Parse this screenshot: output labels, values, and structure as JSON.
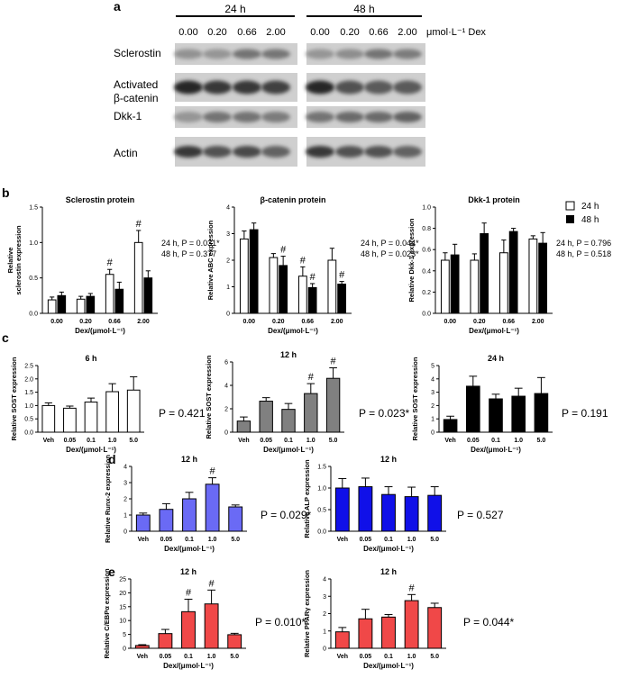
{
  "panel_labels": {
    "a": "a",
    "b": "b",
    "c": "c",
    "d": "d",
    "e": "e"
  },
  "panel_a": {
    "time_labels": [
      "24 h",
      "48 h"
    ],
    "dose_labels": [
      "0.00",
      "0.20",
      "0.66",
      "2.00",
      "0.00",
      "0.20",
      "0.66",
      "2.00"
    ],
    "unit_label": "μmol·L⁻¹ Dex",
    "row_labels": [
      [
        "Sclerostin"
      ],
      [
        "Activated",
        "β-catenin"
      ],
      [
        "Dkk-1"
      ],
      [
        "Actin"
      ]
    ]
  },
  "legend": {
    "items": [
      {
        "label": "24 h",
        "color": "#ffffff"
      },
      {
        "label": "48 h",
        "color": "#000000"
      }
    ]
  },
  "chart_data": [
    {
      "id": "b1",
      "type": "bar",
      "title": "Sclerostin protein",
      "ylabel": "Relative sclerostin expression",
      "ylabel_lines": [
        "Relative",
        "sclerostin expression"
      ],
      "xlabel": "Dex/(μmol·L⁻¹)",
      "categories": [
        "0.00",
        "0.20",
        "0.66",
        "2.00"
      ],
      "ylim": [
        0,
        1.5
      ],
      "yticks": [
        "0.0",
        "0.5",
        "1.0",
        "1.5"
      ],
      "series": [
        {
          "name": "24 h",
          "values": [
            0.19,
            0.2,
            0.55,
            1.0
          ],
          "errors": [
            0.04,
            0.04,
            0.07,
            0.17
          ],
          "color": "#ffffff"
        },
        {
          "name": "48 h",
          "values": [
            0.25,
            0.24,
            0.34,
            0.5
          ],
          "errors": [
            0.05,
            0.04,
            0.1,
            0.1
          ],
          "color": "#000000"
        }
      ],
      "marks": [
        {
          "series": 0,
          "index": 2,
          "text": "#"
        },
        {
          "series": 0,
          "index": 3,
          "text": "#"
        }
      ],
      "stats": [
        "24 h, P = 0.031*",
        "48 h, P = 0.377"
      ]
    },
    {
      "id": "b2",
      "type": "bar",
      "title": "β-catenin protein",
      "ylabel": "Relative ABC expression",
      "ylabel_lines": [
        "Relative ABC expression"
      ],
      "xlabel": "Dex/(μmol·L⁻¹)",
      "categories": [
        "0.00",
        "0.20",
        "0.66",
        "2.00"
      ],
      "ylim": [
        0,
        4
      ],
      "yticks": [
        "0",
        "1",
        "2",
        "3",
        "4"
      ],
      "series": [
        {
          "name": "24 h",
          "values": [
            2.8,
            2.1,
            1.4,
            2.0
          ],
          "errors": [
            0.3,
            0.15,
            0.35,
            0.45
          ],
          "color": "#ffffff"
        },
        {
          "name": "48 h",
          "values": [
            3.15,
            1.8,
            0.97,
            1.1
          ],
          "errors": [
            0.25,
            0.35,
            0.15,
            0.1
          ],
          "color": "#000000"
        }
      ],
      "marks": [
        {
          "series": 1,
          "index": 1,
          "text": "#"
        },
        {
          "series": 0,
          "index": 2,
          "text": "#"
        },
        {
          "series": 1,
          "index": 2,
          "text": "#"
        },
        {
          "series": 1,
          "index": 3,
          "text": "#"
        }
      ],
      "stats": [
        "24 h, P = 0.044*",
        "48 h, P = 0.023*"
      ]
    },
    {
      "id": "b3",
      "type": "bar",
      "title": "Dkk-1 protein",
      "ylabel": "Relative Dkk-1 expression",
      "ylabel_lines": [
        "Relative Dkk-1 expression"
      ],
      "xlabel": "Dex/(μmol·L⁻¹)",
      "categories": [
        "0.00",
        "0.20",
        "0.66",
        "2.00"
      ],
      "ylim": [
        0,
        1.0
      ],
      "yticks": [
        "0.0",
        "0.2",
        "0.4",
        "0.6",
        "0.8",
        "1.0"
      ],
      "series": [
        {
          "name": "24 h",
          "values": [
            0.5,
            0.5,
            0.57,
            0.7
          ],
          "errors": [
            0.07,
            0.06,
            0.12,
            0.03
          ],
          "color": "#ffffff"
        },
        {
          "name": "48 h",
          "values": [
            0.55,
            0.75,
            0.77,
            0.66
          ],
          "errors": [
            0.1,
            0.1,
            0.03,
            0.1
          ],
          "color": "#000000"
        }
      ],
      "marks": [],
      "stats": [
        "24 h, P = 0.796",
        "48 h, P = 0.518"
      ]
    },
    {
      "id": "c1",
      "type": "bar",
      "title": "6 h",
      "ylabel": "Relative SOST expression",
      "ylabel_lines": [
        "Relative SOST expression"
      ],
      "xlabel": "Dex/(μmol·L⁻¹)",
      "categories": [
        "Veh",
        "0.05",
        "0.1",
        "1.0",
        "5.0"
      ],
      "ylim": [
        0,
        2.5
      ],
      "yticks": [
        "0.0",
        "0.5",
        "1.0",
        "1.5",
        "2.0",
        "2.5"
      ],
      "series": [
        {
          "values": [
            1.0,
            0.9,
            1.13,
            1.52,
            1.58
          ],
          "errors": [
            0.1,
            0.08,
            0.15,
            0.3,
            0.5
          ],
          "color": "#ffffff"
        }
      ],
      "marks": [],
      "stats": [
        "P = 0.421"
      ]
    },
    {
      "id": "c2",
      "type": "bar",
      "title": "12 h",
      "ylabel": "Relative SOST expression",
      "ylabel_lines": [
        "Relative SOST expression"
      ],
      "xlabel": "Dex/(μmol·L⁻¹)",
      "categories": [
        "Veh",
        "0.05",
        "0.1",
        "1.0",
        "5.0"
      ],
      "ylim": [
        0,
        6
      ],
      "yticks": [
        "0",
        "2",
        "4",
        "6"
      ],
      "series": [
        {
          "values": [
            0.95,
            2.65,
            1.95,
            3.3,
            4.6
          ],
          "errors": [
            0.35,
            0.3,
            0.5,
            0.85,
            0.9
          ],
          "color": "#808080"
        }
      ],
      "marks": [
        {
          "series": 0,
          "index": 3,
          "text": "#"
        },
        {
          "series": 0,
          "index": 4,
          "text": "#"
        }
      ],
      "stats": [
        "P = 0.023*"
      ]
    },
    {
      "id": "c3",
      "type": "bar",
      "title": "24 h",
      "ylabel": "Relative SOST expression",
      "ylabel_lines": [
        "Relative SOST expression"
      ],
      "xlabel": "Dex/(μmol·L⁻¹)",
      "categories": [
        "Veh",
        "0.05",
        "0.1",
        "1.0",
        "5.0"
      ],
      "ylim": [
        0,
        5
      ],
      "yticks": [
        "0",
        "1",
        "2",
        "3",
        "4",
        "5"
      ],
      "series": [
        {
          "values": [
            0.95,
            3.45,
            2.5,
            2.7,
            2.9
          ],
          "errors": [
            0.25,
            0.75,
            0.35,
            0.6,
            1.2
          ],
          "color": "#000000"
        }
      ],
      "marks": [],
      "stats": [
        "P = 0.191"
      ]
    },
    {
      "id": "d1",
      "type": "bar",
      "title": "12 h",
      "ylabel": "Relative Runx-2 expression",
      "ylabel_lines": [
        "Relative Runx-2 expression"
      ],
      "xlabel": "Dex/(μmol·L⁻¹)",
      "categories": [
        "Veh",
        "0.05",
        "0.1",
        "1.0",
        "5.0"
      ],
      "ylim": [
        0,
        4
      ],
      "yticks": [
        "0",
        "1",
        "2",
        "3",
        "4"
      ],
      "series": [
        {
          "values": [
            1.0,
            1.35,
            2.0,
            2.9,
            1.5
          ],
          "errors": [
            0.12,
            0.35,
            0.4,
            0.4,
            0.12
          ],
          "color": "#6a6af5"
        }
      ],
      "marks": [
        {
          "series": 0,
          "index": 3,
          "text": "#"
        }
      ],
      "stats": [
        "P = 0.029*"
      ]
    },
    {
      "id": "d2",
      "type": "bar",
      "title": "12 h",
      "ylabel": "Relative ALP expression",
      "ylabel_lines": [
        "Relative ALP expression"
      ],
      "xlabel": "Dex/(μmol·L⁻¹)",
      "categories": [
        "Veh",
        "0.05",
        "0.1",
        "1.0",
        "5.0"
      ],
      "ylim": [
        0,
        1.5
      ],
      "yticks": [
        "0.0",
        "0.5",
        "1.0",
        "1.5"
      ],
      "series": [
        {
          "values": [
            1.0,
            1.03,
            0.85,
            0.8,
            0.83
          ],
          "errors": [
            0.22,
            0.2,
            0.18,
            0.22,
            0.2
          ],
          "color": "#1010e8"
        }
      ],
      "marks": [],
      "stats": [
        "P = 0.527"
      ]
    },
    {
      "id": "e1",
      "type": "bar",
      "title": "12 h",
      "ylabel": "Relative C/EBPα expression",
      "ylabel_lines": [
        "Relative C/EBPα expression"
      ],
      "xlabel": "Dex/(μmol·L⁻¹)",
      "categories": [
        "Veh",
        "0.05",
        "0.1",
        "1.0",
        "5.0"
      ],
      "ylim": [
        0,
        25
      ],
      "yticks": [
        "0",
        "5",
        "10",
        "15",
        "20",
        "25"
      ],
      "series": [
        {
          "values": [
            1.0,
            5.3,
            13.2,
            16.0,
            4.9
          ],
          "errors": [
            0.3,
            1.5,
            4.5,
            5.0,
            0.5
          ],
          "color": "#f04848"
        }
      ],
      "marks": [
        {
          "series": 0,
          "index": 2,
          "text": "#"
        },
        {
          "series": 0,
          "index": 3,
          "text": "#"
        }
      ],
      "stats": [
        "P = 0.010*"
      ]
    },
    {
      "id": "e2",
      "type": "bar",
      "title": "12 h",
      "ylabel": "Relative PPARγ expression",
      "ylabel_lines": [
        "Relative PPARγ expression"
      ],
      "xlabel": "Dex/(μmol·L⁻¹)",
      "categories": [
        "Veh",
        "0.05",
        "0.1",
        "1.0",
        "5.0"
      ],
      "ylim": [
        0,
        4
      ],
      "yticks": [
        "0",
        "1",
        "2",
        "3",
        "4"
      ],
      "series": [
        {
          "values": [
            0.95,
            1.7,
            1.8,
            2.75,
            2.35
          ],
          "errors": [
            0.25,
            0.55,
            0.15,
            0.35,
            0.25
          ],
          "color": "#f04848"
        }
      ],
      "marks": [
        {
          "series": 0,
          "index": 3,
          "text": "#"
        }
      ],
      "stats": [
        "P = 0.044*"
      ]
    }
  ]
}
